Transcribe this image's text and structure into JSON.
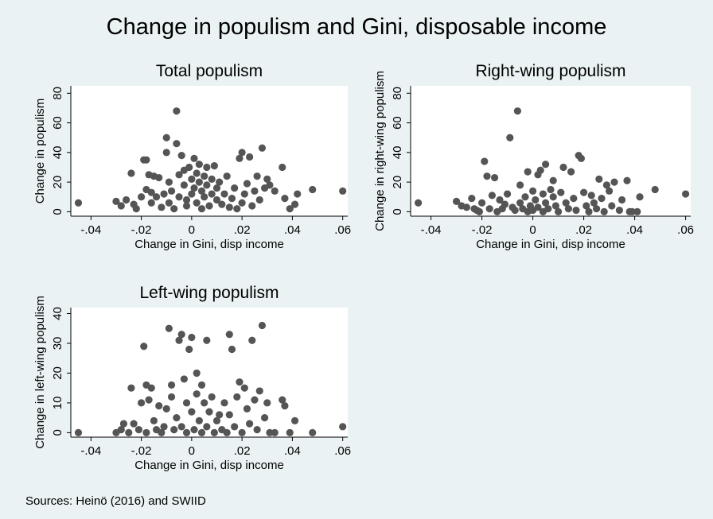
{
  "figure": {
    "title": "Change in populism and Gini, disposable income",
    "source_note": "Sources: Heinö (2016) and SWIID"
  },
  "chart_data": [
    {
      "type": "scatter",
      "title": "Total populism",
      "xlabel": "Change in Gini, disp income",
      "ylabel": "Change in populism",
      "xlim": [
        -0.048,
        0.062
      ],
      "ylim": [
        -3,
        85
      ],
      "xticks": [
        -0.04,
        -0.02,
        0,
        0.02,
        0.04,
        0.06
      ],
      "xtick_labels": [
        "-.04",
        "-.02",
        "0",
        ".02",
        ".04",
        ".06"
      ],
      "yticks": [
        0,
        20,
        40,
        60,
        80
      ],
      "ytick_labels": [
        "0",
        "20",
        "40",
        "60",
        "80"
      ],
      "marker_color": "#555555",
      "points": [
        [
          -0.045,
          6
        ],
        [
          -0.03,
          7
        ],
        [
          -0.028,
          4
        ],
        [
          -0.026,
          8
        ],
        [
          -0.024,
          26
        ],
        [
          -0.023,
          5
        ],
        [
          -0.022,
          2
        ],
        [
          -0.02,
          10
        ],
        [
          -0.019,
          35
        ],
        [
          -0.018,
          35
        ],
        [
          -0.018,
          15
        ],
        [
          -0.017,
          25
        ],
        [
          -0.016,
          13
        ],
        [
          -0.016,
          6
        ],
        [
          -0.015,
          24
        ],
        [
          -0.014,
          10
        ],
        [
          -0.013,
          23
        ],
        [
          -0.012,
          3
        ],
        [
          -0.011,
          12
        ],
        [
          -0.01,
          40
        ],
        [
          -0.01,
          50
        ],
        [
          -0.009,
          20
        ],
        [
          -0.009,
          6
        ],
        [
          -0.008,
          14
        ],
        [
          -0.007,
          2
        ],
        [
          -0.006,
          46
        ],
        [
          -0.006,
          68
        ],
        [
          -0.005,
          25
        ],
        [
          -0.005,
          10
        ],
        [
          -0.004,
          38
        ],
        [
          -0.003,
          28
        ],
        [
          -0.003,
          18
        ],
        [
          -0.002,
          8
        ],
        [
          -0.002,
          4
        ],
        [
          -0.001,
          30
        ],
        [
          0.0,
          22
        ],
        [
          0.0,
          12
        ],
        [
          0.001,
          36
        ],
        [
          0.001,
          16
        ],
        [
          0.002,
          26
        ],
        [
          0.002,
          6
        ],
        [
          0.003,
          20
        ],
        [
          0.003,
          32
        ],
        [
          0.004,
          14
        ],
        [
          0.004,
          2
        ],
        [
          0.005,
          24
        ],
        [
          0.005,
          10
        ],
        [
          0.006,
          30
        ],
        [
          0.006,
          18
        ],
        [
          0.007,
          4
        ],
        [
          0.008,
          22
        ],
        [
          0.008,
          12
        ],
        [
          0.009,
          31
        ],
        [
          0.01,
          8
        ],
        [
          0.01,
          16
        ],
        [
          0.011,
          20
        ],
        [
          0.012,
          5
        ],
        [
          0.013,
          12
        ],
        [
          0.014,
          24
        ],
        [
          0.015,
          3
        ],
        [
          0.016,
          9
        ],
        [
          0.017,
          16
        ],
        [
          0.018,
          2
        ],
        [
          0.019,
          36
        ],
        [
          0.02,
          40
        ],
        [
          0.02,
          6
        ],
        [
          0.021,
          12
        ],
        [
          0.022,
          19
        ],
        [
          0.023,
          37
        ],
        [
          0.024,
          4
        ],
        [
          0.025,
          14
        ],
        [
          0.026,
          24
        ],
        [
          0.027,
          8
        ],
        [
          0.028,
          43
        ],
        [
          0.029,
          16
        ],
        [
          0.03,
          22
        ],
        [
          0.031,
          18
        ],
        [
          0.033,
          14
        ],
        [
          0.036,
          30
        ],
        [
          0.037,
          9
        ],
        [
          0.039,
          2
        ],
        [
          0.041,
          5
        ],
        [
          0.042,
          12
        ],
        [
          0.048,
          15
        ],
        [
          0.06,
          14
        ]
      ]
    },
    {
      "type": "scatter",
      "title": "Right-wing populism",
      "xlabel": "Change in Gini, disp income",
      "ylabel": "Change in right-wing populism",
      "xlim": [
        -0.048,
        0.062
      ],
      "ylim": [
        -3,
        85
      ],
      "xticks": [
        -0.04,
        -0.02,
        0,
        0.02,
        0.04,
        0.06
      ],
      "xtick_labels": [
        "-.04",
        "-.02",
        "0",
        ".02",
        ".04",
        ".06"
      ],
      "yticks": [
        0,
        20,
        40,
        60,
        80
      ],
      "ytick_labels": [
        "0",
        "20",
        "40",
        "60",
        "80"
      ],
      "marker_color": "#555555",
      "points": [
        [
          -0.045,
          6
        ],
        [
          -0.03,
          7
        ],
        [
          -0.028,
          4
        ],
        [
          -0.026,
          3
        ],
        [
          -0.024,
          9
        ],
        [
          -0.023,
          2
        ],
        [
          -0.022,
          1
        ],
        [
          -0.021,
          0
        ],
        [
          -0.02,
          6
        ],
        [
          -0.019,
          34
        ],
        [
          -0.018,
          24
        ],
        [
          -0.017,
          2
        ],
        [
          -0.016,
          11
        ],
        [
          -0.015,
          23
        ],
        [
          -0.014,
          0
        ],
        [
          -0.013,
          8
        ],
        [
          -0.012,
          2
        ],
        [
          -0.011,
          5
        ],
        [
          -0.01,
          12
        ],
        [
          -0.009,
          50
        ],
        [
          -0.008,
          3
        ],
        [
          -0.007,
          1
        ],
        [
          -0.006,
          68
        ],
        [
          -0.005,
          18
        ],
        [
          -0.005,
          6
        ],
        [
          -0.004,
          2
        ],
        [
          -0.003,
          10
        ],
        [
          -0.002,
          0
        ],
        [
          -0.002,
          27
        ],
        [
          -0.001,
          4
        ],
        [
          0.0,
          14
        ],
        [
          0.0,
          1
        ],
        [
          0.001,
          8
        ],
        [
          0.002,
          3
        ],
        [
          0.002,
          25
        ],
        [
          0.003,
          28
        ],
        [
          0.004,
          12
        ],
        [
          0.004,
          0
        ],
        [
          0.005,
          32
        ],
        [
          0.005,
          6
        ],
        [
          0.006,
          2
        ],
        [
          0.007,
          15
        ],
        [
          0.008,
          21
        ],
        [
          0.008,
          10
        ],
        [
          0.009,
          4
        ],
        [
          0.01,
          0
        ],
        [
          0.011,
          13
        ],
        [
          0.012,
          30
        ],
        [
          0.013,
          6
        ],
        [
          0.014,
          2
        ],
        [
          0.015,
          27
        ],
        [
          0.016,
          9
        ],
        [
          0.017,
          1
        ],
        [
          0.018,
          38
        ],
        [
          0.019,
          36
        ],
        [
          0.02,
          13
        ],
        [
          0.021,
          4
        ],
        [
          0.022,
          0
        ],
        [
          0.023,
          11
        ],
        [
          0.024,
          6
        ],
        [
          0.025,
          2
        ],
        [
          0.026,
          22
        ],
        [
          0.027,
          9
        ],
        [
          0.028,
          0
        ],
        [
          0.029,
          18
        ],
        [
          0.03,
          14
        ],
        [
          0.031,
          4
        ],
        [
          0.032,
          20
        ],
        [
          0.034,
          1
        ],
        [
          0.035,
          8
        ],
        [
          0.037,
          21
        ],
        [
          0.038,
          0
        ],
        [
          0.039,
          0
        ],
        [
          0.041,
          0
        ],
        [
          0.042,
          10
        ],
        [
          0.048,
          15
        ],
        [
          0.06,
          12
        ]
      ]
    },
    {
      "type": "scatter",
      "title": "Left-wing populism",
      "xlabel": "Change in Gini, disp income",
      "ylabel": "Change in left-wing populism",
      "xlim": [
        -0.048,
        0.062
      ],
      "ylim": [
        -1.5,
        42
      ],
      "xticks": [
        -0.04,
        -0.02,
        0,
        0.02,
        0.04,
        0.06
      ],
      "xtick_labels": [
        "-.04",
        "-.02",
        "0",
        ".02",
        ".04",
        ".06"
      ],
      "yticks": [
        0,
        10,
        20,
        30,
        40
      ],
      "ytick_labels": [
        "0",
        "10",
        "20",
        "30",
        "40"
      ],
      "marker_color": "#555555",
      "points": [
        [
          -0.045,
          0
        ],
        [
          -0.03,
          0
        ],
        [
          -0.028,
          1
        ],
        [
          -0.027,
          3
        ],
        [
          -0.025,
          0
        ],
        [
          -0.024,
          15
        ],
        [
          -0.023,
          3
        ],
        [
          -0.021,
          1
        ],
        [
          -0.02,
          10
        ],
        [
          -0.019,
          29
        ],
        [
          -0.018,
          16
        ],
        [
          -0.018,
          0
        ],
        [
          -0.017,
          11
        ],
        [
          -0.016,
          15
        ],
        [
          -0.015,
          4
        ],
        [
          -0.014,
          1
        ],
        [
          -0.013,
          9
        ],
        [
          -0.012,
          0
        ],
        [
          -0.011,
          2
        ],
        [
          -0.01,
          8
        ],
        [
          -0.009,
          35
        ],
        [
          -0.008,
          16
        ],
        [
          -0.008,
          12
        ],
        [
          -0.007,
          1
        ],
        [
          -0.006,
          5
        ],
        [
          -0.005,
          31
        ],
        [
          -0.004,
          33
        ],
        [
          -0.004,
          2
        ],
        [
          -0.003,
          18
        ],
        [
          -0.002,
          10
        ],
        [
          -0.002,
          0
        ],
        [
          -0.001,
          28
        ],
        [
          0.0,
          32
        ],
        [
          0.0,
          7
        ],
        [
          0.001,
          1
        ],
        [
          0.002,
          13
        ],
        [
          0.002,
          20
        ],
        [
          0.003,
          4
        ],
        [
          0.004,
          16
        ],
        [
          0.004,
          0
        ],
        [
          0.005,
          10
        ],
        [
          0.006,
          31
        ],
        [
          0.006,
          2
        ],
        [
          0.007,
          7
        ],
        [
          0.008,
          12
        ],
        [
          0.009,
          0
        ],
        [
          0.01,
          4
        ],
        [
          0.011,
          6
        ],
        [
          0.012,
          1
        ],
        [
          0.013,
          10
        ],
        [
          0.014,
          0
        ],
        [
          0.015,
          33
        ],
        [
          0.015,
          6
        ],
        [
          0.016,
          28
        ],
        [
          0.017,
          2
        ],
        [
          0.018,
          12
        ],
        [
          0.019,
          17
        ],
        [
          0.02,
          0
        ],
        [
          0.021,
          15
        ],
        [
          0.022,
          8
        ],
        [
          0.023,
          3
        ],
        [
          0.024,
          31
        ],
        [
          0.025,
          11
        ],
        [
          0.026,
          1
        ],
        [
          0.027,
          14
        ],
        [
          0.028,
          36
        ],
        [
          0.029,
          5
        ],
        [
          0.03,
          10
        ],
        [
          0.031,
          0
        ],
        [
          0.033,
          0
        ],
        [
          0.036,
          11
        ],
        [
          0.037,
          9
        ],
        [
          0.039,
          0
        ],
        [
          0.041,
          4
        ],
        [
          0.048,
          0
        ],
        [
          0.06,
          2
        ]
      ]
    }
  ]
}
